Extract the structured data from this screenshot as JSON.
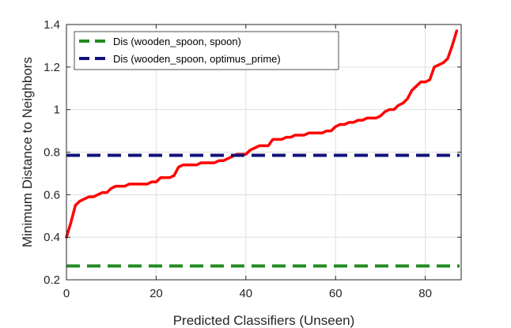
{
  "chart_data": {
    "type": "line",
    "xlabel": "Predicted Classifiers (Unseen)",
    "ylabel": "Minimum Distance to Neighbors",
    "xlim": [
      0,
      88
    ],
    "ylim": [
      0.2,
      1.4
    ],
    "xticks": [
      0,
      20,
      40,
      60,
      80
    ],
    "yticks": [
      0.2,
      0.4,
      0.6,
      0.8,
      1.0,
      1.2,
      1.4
    ],
    "xtick_labels": [
      "0",
      "20",
      "40",
      "60",
      "80"
    ],
    "ytick_labels": [
      "0.2",
      "0.4",
      "0.6",
      "0.8",
      "1",
      "1.2",
      "1.4"
    ],
    "grid": true,
    "legend_position": "top-left",
    "series": [
      {
        "color": "#ff0000",
        "style": "solid",
        "x": [
          0,
          1,
          2,
          3,
          4,
          5,
          6,
          7,
          8,
          9,
          10,
          11,
          12,
          13,
          14,
          15,
          16,
          17,
          18,
          19,
          20,
          21,
          22,
          23,
          24,
          25,
          26,
          27,
          28,
          29,
          30,
          31,
          32,
          33,
          34,
          35,
          36,
          37,
          38,
          39,
          40,
          41,
          42,
          43,
          44,
          45,
          46,
          47,
          48,
          49,
          50,
          51,
          52,
          53,
          54,
          55,
          56,
          57,
          58,
          59,
          60,
          61,
          62,
          63,
          64,
          65,
          66,
          67,
          68,
          69,
          70,
          71,
          72,
          73,
          74,
          75,
          76,
          77,
          78,
          79,
          80,
          81,
          82,
          83,
          84,
          85,
          86,
          87
        ],
        "y": [
          0.4,
          0.47,
          0.55,
          0.57,
          0.58,
          0.59,
          0.59,
          0.6,
          0.61,
          0.61,
          0.63,
          0.64,
          0.64,
          0.64,
          0.65,
          0.65,
          0.65,
          0.65,
          0.65,
          0.66,
          0.66,
          0.68,
          0.68,
          0.68,
          0.69,
          0.73,
          0.74,
          0.74,
          0.74,
          0.74,
          0.75,
          0.75,
          0.75,
          0.75,
          0.76,
          0.76,
          0.77,
          0.78,
          0.79,
          0.79,
          0.79,
          0.81,
          0.82,
          0.83,
          0.83,
          0.83,
          0.86,
          0.86,
          0.86,
          0.87,
          0.87,
          0.88,
          0.88,
          0.88,
          0.89,
          0.89,
          0.89,
          0.89,
          0.9,
          0.9,
          0.92,
          0.93,
          0.93,
          0.94,
          0.94,
          0.95,
          0.95,
          0.96,
          0.96,
          0.96,
          0.97,
          0.99,
          1.0,
          1.0,
          1.02,
          1.03,
          1.05,
          1.09,
          1.11,
          1.13,
          1.13,
          1.14,
          1.2,
          1.21,
          1.22,
          1.24,
          1.3,
          1.37
        ]
      },
      {
        "name": "Dis (wooden_spoon, spoon)",
        "color": "#228b22",
        "style": "dashed",
        "constant": 0.265
      },
      {
        "name": "Dis (wooden_spoon, optimus_prime)",
        "color": "#10107a",
        "style": "dashed",
        "constant": 0.785
      }
    ]
  }
}
